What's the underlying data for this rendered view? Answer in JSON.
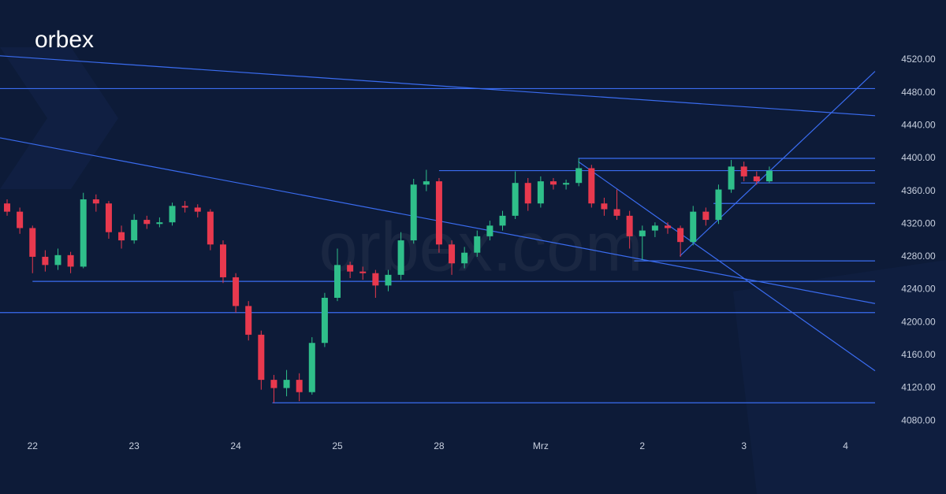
{
  "brand": {
    "logo": "orbex",
    "watermark": "orbex.com"
  },
  "chart_data": {
    "type": "candlestick",
    "xlim": [
      -0.32,
      8.29
    ],
    "ylim": [
      4060,
      4593
    ],
    "xticks": [
      {
        "value": 0,
        "label": "22"
      },
      {
        "value": 1,
        "label": "23"
      },
      {
        "value": 2,
        "label": "24"
      },
      {
        "value": 3,
        "label": "25"
      },
      {
        "value": 4,
        "label": "28"
      },
      {
        "value": 5,
        "label": "Mrz"
      },
      {
        "value": 6,
        "label": "2"
      },
      {
        "value": 7,
        "label": "3"
      },
      {
        "value": 8,
        "label": "4"
      }
    ],
    "yticks": [
      {
        "value": 4080,
        "label": "4080.00"
      },
      {
        "value": 4120,
        "label": "4120.00"
      },
      {
        "value": 4160,
        "label": "4160.00"
      },
      {
        "value": 4200,
        "label": "4200.00"
      },
      {
        "value": 4240,
        "label": "4240.00"
      },
      {
        "value": 4280,
        "label": "4280.00"
      },
      {
        "value": 4320,
        "label": "4320.00"
      },
      {
        "value": 4360,
        "label": "4360.00"
      },
      {
        "value": 4400,
        "label": "4400.00"
      },
      {
        "value": 4440,
        "label": "4440.00"
      },
      {
        "value": 4480,
        "label": "4480.00"
      },
      {
        "value": 4520,
        "label": "4520.00"
      }
    ],
    "up_color": "#2fbf8a",
    "down_color": "#e8394e",
    "line_color": "#3a6cf0",
    "x": [
      -0.25,
      -0.125,
      0,
      0.125,
      0.25,
      0.375,
      0.5,
      0.625,
      0.75,
      0.875,
      1,
      1.125,
      1.25,
      1.375,
      1.5,
      1.625,
      1.75,
      1.875,
      2,
      2.125,
      2.25,
      2.375,
      2.5,
      2.625,
      2.75,
      2.875,
      3,
      3.125,
      3.25,
      3.375,
      3.5,
      3.625,
      3.75,
      3.875,
      4,
      4.125,
      4.25,
      4.375,
      4.5,
      4.625,
      4.75,
      4.875,
      5,
      5.125,
      5.25,
      5.375,
      5.5,
      5.625,
      5.75,
      5.875,
      6,
      6.125,
      6.25,
      6.375,
      6.5,
      6.625,
      6.75,
      6.875,
      7,
      7.125,
      7.25
    ],
    "candles": [
      [
        4345,
        4350,
        4330,
        4335
      ],
      [
        4335,
        4340,
        4308,
        4315
      ],
      [
        4315,
        4318,
        4260,
        4280
      ],
      [
        4280,
        4288,
        4262,
        4270
      ],
      [
        4270,
        4290,
        4264,
        4282
      ],
      [
        4282,
        4286,
        4260,
        4268
      ],
      [
        4268,
        4358,
        4266,
        4350
      ],
      [
        4350,
        4356,
        4335,
        4345
      ],
      [
        4345,
        4348,
        4302,
        4310
      ],
      [
        4310,
        4318,
        4290,
        4300
      ],
      [
        4300,
        4332,
        4296,
        4325
      ],
      [
        4325,
        4330,
        4314,
        4320
      ],
      [
        4320,
        4328,
        4316,
        4322
      ],
      [
        4322,
        4346,
        4318,
        4342
      ],
      [
        4342,
        4348,
        4334,
        4340
      ],
      [
        4340,
        4344,
        4328,
        4335
      ],
      [
        4335,
        4338,
        4288,
        4295
      ],
      [
        4295,
        4300,
        4248,
        4255
      ],
      [
        4255,
        4260,
        4212,
        4220
      ],
      [
        4220,
        4226,
        4178,
        4185
      ],
      [
        4185,
        4190,
        4118,
        4130
      ],
      [
        4130,
        4136,
        4102,
        4120
      ],
      [
        4120,
        4142,
        4110,
        4130
      ],
      [
        4130,
        4138,
        4104,
        4115
      ],
      [
        4115,
        4182,
        4112,
        4175
      ],
      [
        4175,
        4236,
        4170,
        4230
      ],
      [
        4230,
        4290,
        4226,
        4270
      ],
      [
        4270,
        4274,
        4254,
        4262
      ],
      [
        4262,
        4268,
        4252,
        4260
      ],
      [
        4260,
        4264,
        4230,
        4245
      ],
      [
        4245,
        4264,
        4238,
        4258
      ],
      [
        4258,
        4310,
        4252,
        4300
      ],
      [
        4300,
        4375,
        4296,
        4368
      ],
      [
        4368,
        4386,
        4360,
        4372
      ],
      [
        4372,
        4376,
        4285,
        4295
      ],
      [
        4295,
        4300,
        4258,
        4272
      ],
      [
        4272,
        4292,
        4266,
        4285
      ],
      [
        4285,
        4312,
        4280,
        4305
      ],
      [
        4305,
        4324,
        4300,
        4318
      ],
      [
        4318,
        4336,
        4312,
        4330
      ],
      [
        4330,
        4384,
        4326,
        4370
      ],
      [
        4370,
        4376,
        4336,
        4345
      ],
      [
        4345,
        4378,
        4340,
        4372
      ],
      [
        4372,
        4376,
        4362,
        4368
      ],
      [
        4368,
        4374,
        4362,
        4370
      ],
      [
        4370,
        4400,
        4366,
        4388
      ],
      [
        4388,
        4392,
        4340,
        4345
      ],
      [
        4345,
        4352,
        4330,
        4338
      ],
      [
        4338,
        4362,
        4325,
        4330
      ],
      [
        4330,
        4336,
        4290,
        4305
      ],
      [
        4305,
        4318,
        4276,
        4312
      ],
      [
        4312,
        4322,
        4304,
        4318
      ],
      [
        4318,
        4322,
        4308,
        4315
      ],
      [
        4315,
        4318,
        4280,
        4298
      ],
      [
        4298,
        4342,
        4294,
        4335
      ],
      [
        4335,
        4340,
        4318,
        4325
      ],
      [
        4325,
        4368,
        4320,
        4362
      ],
      [
        4362,
        4398,
        4358,
        4390
      ],
      [
        4390,
        4396,
        4372,
        4378
      ],
      [
        4378,
        4384,
        4368,
        4372
      ],
      [
        4372,
        4390,
        4370,
        4385
      ]
    ],
    "lines": [
      {
        "x": [
          -0.32,
          8.29
        ],
        "y": [
          4525,
          4452
        ]
      },
      {
        "x": [
          -0.32,
          8.29
        ],
        "y": [
          4425,
          4223
        ]
      },
      {
        "x": [
          -0.32,
          8.29
        ],
        "y": [
          4485,
          4485
        ]
      },
      {
        "x": [
          5.37,
          8.29
        ],
        "y": [
          4400,
          4400
        ]
      },
      {
        "x": [
          4.0,
          8.29
        ],
        "y": [
          4385,
          4385
        ]
      },
      {
        "x": [
          6.97,
          8.29
        ],
        "y": [
          4370,
          4370
        ]
      },
      {
        "x": [
          6.7,
          8.29
        ],
        "y": [
          4345,
          4345
        ]
      },
      {
        "x": [
          5.92,
          8.29
        ],
        "y": [
          4275,
          4275
        ]
      },
      {
        "x": [
          0,
          8.29
        ],
        "y": [
          4250,
          4250
        ]
      },
      {
        "x": [
          -0.32,
          8.29
        ],
        "y": [
          4212,
          4212
        ]
      },
      {
        "x": [
          2.36,
          8.29
        ],
        "y": [
          4102,
          4102
        ]
      },
      {
        "x": [
          6.37,
          8.29
        ],
        "y": [
          4281,
          4506
        ]
      },
      {
        "x": [
          5.37,
          8.29
        ],
        "y": [
          4396,
          4141
        ]
      }
    ]
  }
}
